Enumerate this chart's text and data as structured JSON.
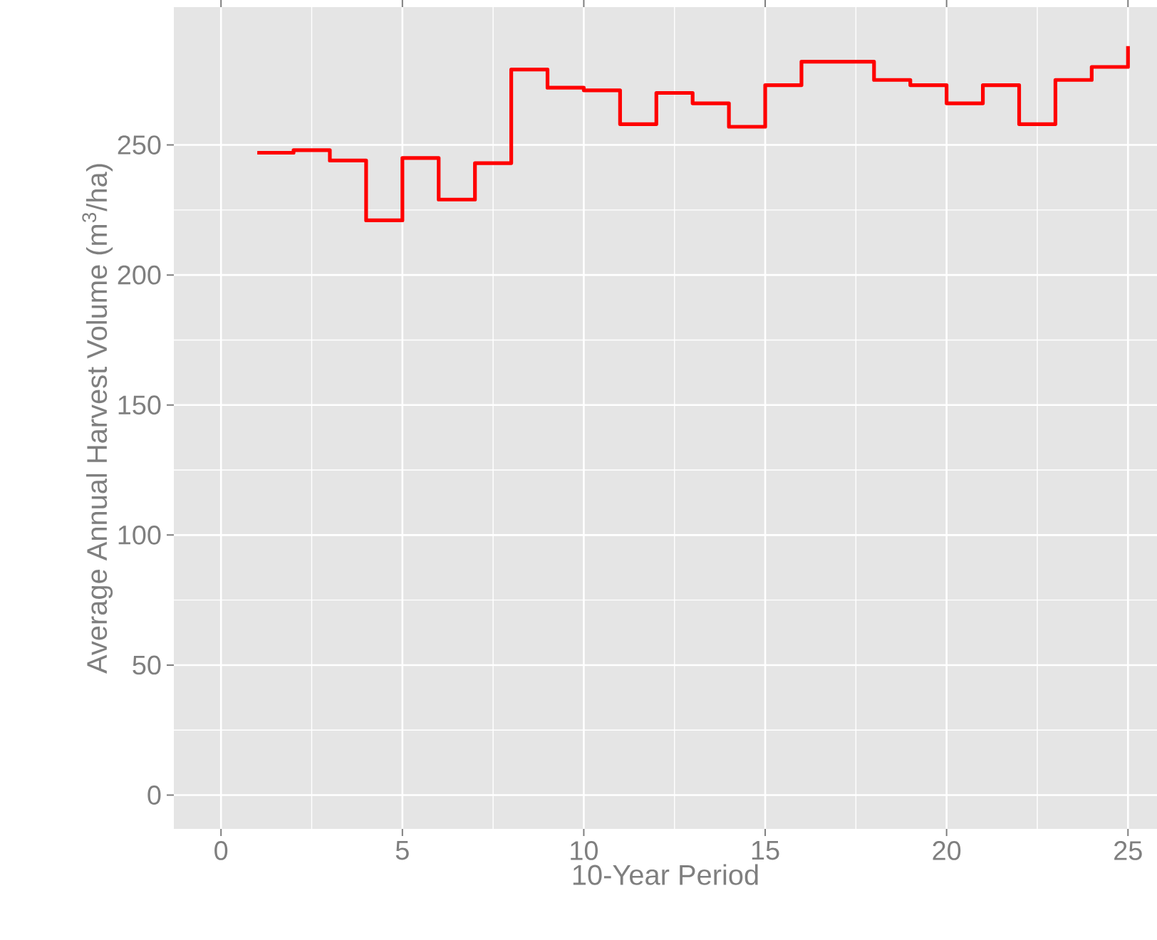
{
  "chart_data": {
    "type": "step",
    "xlabel": "10-Year Period",
    "ylabel": "Average Annual Harvest Volume (m$^{3}$/ha)",
    "x": [
      1,
      2,
      3,
      4,
      5,
      6,
      7,
      8,
      9,
      10,
      11,
      12,
      13,
      14,
      15,
      16,
      17,
      18,
      19,
      20,
      21,
      22,
      23,
      24,
      25
    ],
    "series": [
      {
        "color": "#ff0000",
        "values": [
          247,
          248,
          244,
          221,
          245,
          229,
          243,
          279,
          272,
          271,
          258,
          270,
          266,
          257,
          273,
          282,
          282,
          275,
          273,
          266,
          273,
          258,
          275,
          280,
          288
        ]
      }
    ],
    "xlim": [
      -1.3,
      25.8
    ],
    "ylim": [
      -13,
      303
    ],
    "xticks": [
      0,
      5,
      10,
      15,
      20,
      25
    ],
    "yticks": [
      0,
      50,
      100,
      150,
      200,
      250
    ],
    "grid": true,
    "line_style": "solid"
  }
}
